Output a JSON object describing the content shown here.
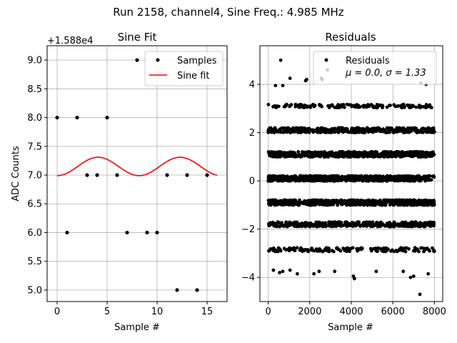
{
  "suptitle": "Run 2158, channel4, Sine Freq.: 4.985 MHz",
  "chart_data": [
    {
      "type": "scatter",
      "title": "Sine Fit",
      "xlabel": "Sample #",
      "ylabel": "ADC Counts",
      "offset_label": "+1.588e4",
      "xlim": [
        -1,
        17
      ],
      "ylim": [
        4.8,
        9.25
      ],
      "xticks": [
        0,
        5,
        10,
        15
      ],
      "xtick_labels": [
        "0",
        "5",
        "10",
        "15"
      ],
      "yticks": [
        5.0,
        5.5,
        6.0,
        6.5,
        7.0,
        7.5,
        8.0,
        8.5,
        9.0
      ],
      "ytick_labels": [
        "5.0",
        "5.5",
        "6.0",
        "6.5",
        "7.0",
        "7.5",
        "8.0",
        "8.5",
        "9.0"
      ],
      "grid": true,
      "series": [
        {
          "name": "Samples",
          "kind": "points",
          "color": "#000000",
          "x": [
            0,
            1,
            2,
            3,
            4,
            5,
            6,
            7,
            8,
            9,
            10,
            11,
            12,
            13,
            14,
            15
          ],
          "y": [
            8,
            6,
            8,
            7,
            7,
            8,
            7,
            6,
            9,
            6,
            6,
            7,
            5,
            7,
            5,
            7
          ]
        },
        {
          "name": "Sine fit",
          "kind": "line",
          "color": "#ff0000",
          "model": {
            "mean": 7.15,
            "amplitude": 0.16,
            "period": 8.2,
            "phase": -1.57,
            "x_start": 0,
            "x_end": 16
          }
        }
      ],
      "legend": "top-right"
    },
    {
      "type": "scatter",
      "title": "Residuals",
      "xlabel": "Sample #",
      "ylabel": "",
      "xlim": [
        -400,
        8400
      ],
      "ylim": [
        -5.0,
        5.6
      ],
      "xticks": [
        0,
        2000,
        4000,
        6000,
        8000
      ],
      "xtick_labels": [
        "0",
        "2000",
        "4000",
        "6000",
        "8000"
      ],
      "yticks": [
        -4,
        -2,
        0,
        2,
        4
      ],
      "ytick_labels": [
        "−4",
        "−2",
        "0",
        "2",
        "4"
      ],
      "grid": true,
      "series": [
        {
          "name": "Residuals",
          "kind": "points",
          "color": "#000000",
          "x_range": [
            0,
            8000
          ],
          "bands": [
            {
              "level": 2.1,
              "count": 420,
              "spread": 0.2
            },
            {
              "level": 1.1,
              "count": 650,
              "spread": 0.22
            },
            {
              "level": 0.1,
              "count": 700,
              "spread": 0.22
            },
            {
              "level": -0.9,
              "count": 650,
              "spread": 0.22
            },
            {
              "level": -1.8,
              "count": 380,
              "spread": 0.2
            },
            {
              "level": 3.1,
              "count": 140,
              "spread": 0.14
            },
            {
              "level": -2.85,
              "count": 160,
              "spread": 0.16
            }
          ],
          "outliers": [
            [
              600,
              5.0
            ],
            [
              1050,
              4.25
            ],
            [
              1800,
              4.15
            ],
            [
              1850,
              4.2
            ],
            [
              2550,
              4.25
            ],
            [
              2600,
              4.2
            ],
            [
              2850,
              4.6
            ],
            [
              7350,
              4.05
            ],
            [
              7600,
              4.0
            ],
            [
              350,
              3.95
            ],
            [
              700,
              3.95
            ],
            [
              250,
              -3.7
            ],
            [
              550,
              -3.8
            ],
            [
              700,
              -3.75
            ],
            [
              1050,
              -3.7
            ],
            [
              1400,
              -3.85
            ],
            [
              2200,
              -3.85
            ],
            [
              2450,
              -3.75
            ],
            [
              3200,
              -3.75
            ],
            [
              4100,
              -3.95
            ],
            [
              4150,
              -4.05
            ],
            [
              5200,
              -3.75
            ],
            [
              6500,
              -3.75
            ],
            [
              6850,
              -4.0
            ],
            [
              7000,
              -3.95
            ],
            [
              7300,
              -4.7
            ],
            [
              7700,
              -3.85
            ]
          ]
        }
      ],
      "legend": "top-right",
      "legend_label": "Residuals",
      "legend_stats": "μ = 0.0, σ = 1.33"
    }
  ]
}
